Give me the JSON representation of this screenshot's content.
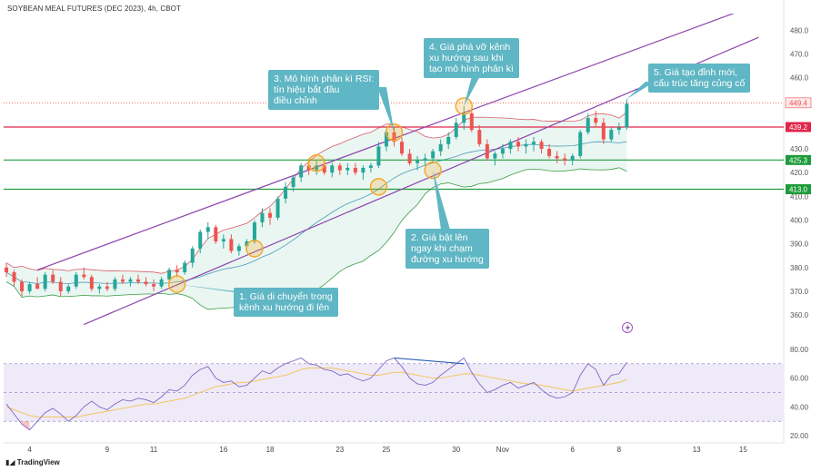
{
  "header": {
    "title": "SOYBEAN MEAL FUTURES (DEC 2023), 4h, CBOT"
  },
  "footer": {
    "brand": "TradingView"
  },
  "colors": {
    "up": "#26a69a",
    "down": "#ef5350",
    "channel": "#8e44ad",
    "resistance": "#e0264a",
    "support": "#1e9c3a",
    "bb_upper": "#d95d6b",
    "bb_lower": "#3a9d45",
    "bb_mid": "#4a9db5",
    "rsi": "#7e67c6",
    "rsi_ma": "#f0c75e",
    "callout": "#5fb6c4",
    "highlight": "#f5a623"
  },
  "annotations": [
    {
      "id": "a1",
      "text": "1. Giá di chuyển trong\nkênh xu hướng đi lên"
    },
    {
      "id": "a2",
      "text": "2. Giá bật lên\nngay khi chạm\nđường xu hướng"
    },
    {
      "id": "a3",
      "text": "3. Mô hình phân kì RSI:\ntín hiệu bắt đầu\nđiều chỉnh"
    },
    {
      "id": "a4",
      "text": "4. Giá phá vỡ kênh\nxu hướng sau khi\ntạo mô hình phân kì"
    },
    {
      "id": "a5",
      "text": "5. Giá tạo đỉnh mới,\ncấu trúc tăng củng cố"
    }
  ],
  "chart_data": {
    "type": "candlestick",
    "title": "SOYBEAN MEAL FUTURES (DEC 2023), 4h, CBOT",
    "x_ticks": [
      "4",
      "9",
      "11",
      "16",
      "18",
      "23",
      "25",
      "30",
      "Nov",
      "6",
      "8",
      "13",
      "15"
    ],
    "x_tick_bars": [
      3,
      13,
      19,
      28,
      34,
      43,
      49,
      58,
      64,
      73,
      79,
      89,
      95
    ],
    "y_ticks": [
      360,
      370,
      380,
      390,
      400,
      410,
      420,
      430,
      440,
      450,
      460,
      470,
      480
    ],
    "y_tick_labels": [
      "360.0",
      "370.0",
      "380.0",
      "390.0",
      "400.0",
      "410.0",
      "420.0",
      "430.0",
      "440.0",
      "450.0",
      "460.0",
      "470.0",
      "480.0"
    ],
    "ylim": [
      352,
      487
    ],
    "price_labels": [
      {
        "value": 449.4,
        "label": "449.4",
        "color": "#ef5350",
        "style": "current"
      },
      {
        "value": 439.2,
        "label": "439.2",
        "color": "#e0264a",
        "style": "resistance"
      },
      {
        "value": 425.3,
        "label": "425.3",
        "color": "#1e9c3a",
        "style": "support"
      },
      {
        "value": 413.0,
        "label": "413.0",
        "color": "#1e9c3a",
        "style": "support"
      }
    ],
    "horizontal_lines": [
      {
        "value": 439.2,
        "name": "resistance-line"
      },
      {
        "value": 425.3,
        "name": "support-line-upper"
      },
      {
        "value": 413.0,
        "name": "support-line-lower"
      }
    ],
    "channel_lines": [
      {
        "name": "channel-upper",
        "from": [
          4,
          379
        ],
        "to": [
          97,
          491
        ]
      },
      {
        "name": "channel-lower",
        "from": [
          10,
          356
        ],
        "to": [
          97,
          477
        ]
      }
    ],
    "candles": [
      [
        380,
        382,
        376,
        378
      ],
      [
        378,
        379,
        372,
        374
      ],
      [
        374,
        375,
        368,
        370
      ],
      [
        370,
        374,
        369,
        373
      ],
      [
        373,
        376,
        371,
        371
      ],
      [
        371,
        378,
        370,
        377
      ],
      [
        377,
        379,
        373,
        374
      ],
      [
        374,
        376,
        368,
        370
      ],
      [
        370,
        373,
        369,
        372
      ],
      [
        372,
        378,
        371,
        377
      ],
      [
        377,
        380,
        375,
        376
      ],
      [
        376,
        377,
        370,
        371
      ],
      [
        371,
        373,
        369,
        372
      ],
      [
        372,
        374,
        370,
        371
      ],
      [
        371,
        376,
        370,
        375
      ],
      [
        375,
        377,
        373,
        374
      ],
      [
        374,
        376,
        372,
        375
      ],
      [
        375,
        377,
        373,
        374
      ],
      [
        374,
        376,
        372,
        373
      ],
      [
        373,
        375,
        370,
        372
      ],
      [
        372,
        376,
        371,
        375
      ],
      [
        375,
        380,
        374,
        379
      ],
      [
        379,
        381,
        376,
        378
      ],
      [
        378,
        383,
        377,
        382
      ],
      [
        382,
        389,
        380,
        388
      ],
      [
        388,
        396,
        386,
        395
      ],
      [
        395,
        399,
        392,
        397
      ],
      [
        397,
        398,
        390,
        391
      ],
      [
        391,
        394,
        388,
        392
      ],
      [
        392,
        394,
        386,
        387
      ],
      [
        387,
        390,
        385,
        389
      ],
      [
        389,
        392,
        387,
        391
      ],
      [
        391,
        400,
        390,
        399
      ],
      [
        399,
        405,
        397,
        403
      ],
      [
        403,
        405,
        398,
        401
      ],
      [
        401,
        410,
        400,
        409
      ],
      [
        409,
        416,
        407,
        414
      ],
      [
        414,
        419,
        412,
        418
      ],
      [
        418,
        424,
        416,
        423
      ],
      [
        423,
        426,
        419,
        421
      ],
      [
        421,
        425,
        419,
        423
      ],
      [
        423,
        425,
        419,
        420
      ],
      [
        420,
        424,
        418,
        423
      ],
      [
        423,
        424,
        419,
        421
      ],
      [
        421,
        424,
        419,
        422
      ],
      [
        422,
        424,
        419,
        420
      ],
      [
        420,
        423,
        417,
        422
      ],
      [
        422,
        424,
        420,
        423
      ],
      [
        423,
        433,
        422,
        431
      ],
      [
        431,
        438,
        429,
        437
      ],
      [
        437,
        439,
        431,
        433
      ],
      [
        433,
        435,
        427,
        428
      ],
      [
        428,
        430,
        423,
        424
      ],
      [
        424,
        427,
        421,
        425
      ],
      [
        425,
        428,
        423,
        426
      ],
      [
        426,
        430,
        424,
        429
      ],
      [
        429,
        434,
        427,
        432
      ],
      [
        432,
        437,
        430,
        435
      ],
      [
        435,
        443,
        434,
        441
      ],
      [
        441,
        448,
        438,
        445
      ],
      [
        445,
        446,
        437,
        438
      ],
      [
        438,
        440,
        431,
        432
      ],
      [
        432,
        434,
        425,
        426
      ],
      [
        426,
        429,
        423,
        428
      ],
      [
        428,
        432,
        426,
        430
      ],
      [
        430,
        434,
        428,
        433
      ],
      [
        433,
        435,
        429,
        431
      ],
      [
        431,
        434,
        428,
        432
      ],
      [
        432,
        435,
        429,
        433
      ],
      [
        433,
        434,
        428,
        430
      ],
      [
        430,
        432,
        426,
        427
      ],
      [
        427,
        429,
        424,
        426
      ],
      [
        426,
        428,
        423,
        425
      ],
      [
        425,
        428,
        423,
        427
      ],
      [
        427,
        438,
        426,
        437
      ],
      [
        437,
        445,
        436,
        443
      ],
      [
        443,
        446,
        439,
        441
      ],
      [
        441,
        443,
        432,
        434
      ],
      [
        434,
        439,
        433,
        438
      ],
      [
        438,
        441,
        436,
        439
      ],
      [
        439,
        451,
        438,
        449
      ]
    ],
    "rsi": {
      "name": "RSI",
      "ylim": [
        15,
        85
      ],
      "y_ticks": [
        20,
        40,
        60,
        80
      ],
      "y_tick_labels": [
        "20.00",
        "40.00",
        "60.00",
        "80.00"
      ],
      "band": [
        30,
        70
      ],
      "values": [
        42,
        35,
        28,
        24,
        30,
        36,
        39,
        35,
        30,
        34,
        40,
        44,
        40,
        38,
        42,
        45,
        44,
        46,
        45,
        43,
        47,
        52,
        51,
        55,
        62,
        66,
        68,
        60,
        57,
        58,
        54,
        55,
        60,
        65,
        63,
        67,
        70,
        72,
        74,
        70,
        69,
        66,
        65,
        62,
        63,
        60,
        58,
        60,
        66,
        72,
        74,
        68,
        60,
        56,
        55,
        57,
        62,
        66,
        70,
        74,
        64,
        56,
        50,
        52,
        55,
        57,
        53,
        55,
        57,
        52,
        48,
        46,
        47,
        50,
        62,
        70,
        66,
        55,
        62,
        63,
        71
      ],
      "ma_values": [
        40,
        38,
        36,
        34,
        33,
        33,
        33,
        33,
        33,
        33,
        34,
        35,
        36,
        37,
        38,
        39,
        40,
        41,
        42,
        42,
        43,
        44,
        45,
        46,
        48,
        50,
        52,
        54,
        55,
        56,
        57,
        57,
        58,
        59,
        60,
        61,
        62,
        64,
        66,
        67,
        67,
        67,
        67,
        66,
        65,
        64,
        63,
        62,
        62,
        63,
        64,
        64,
        63,
        62,
        61,
        60,
        60,
        61,
        62,
        63,
        63,
        62,
        61,
        60,
        59,
        58,
        57,
        56,
        56,
        55,
        54,
        53,
        52,
        51,
        52,
        53,
        54,
        55,
        56,
        57,
        59
      ]
    }
  }
}
